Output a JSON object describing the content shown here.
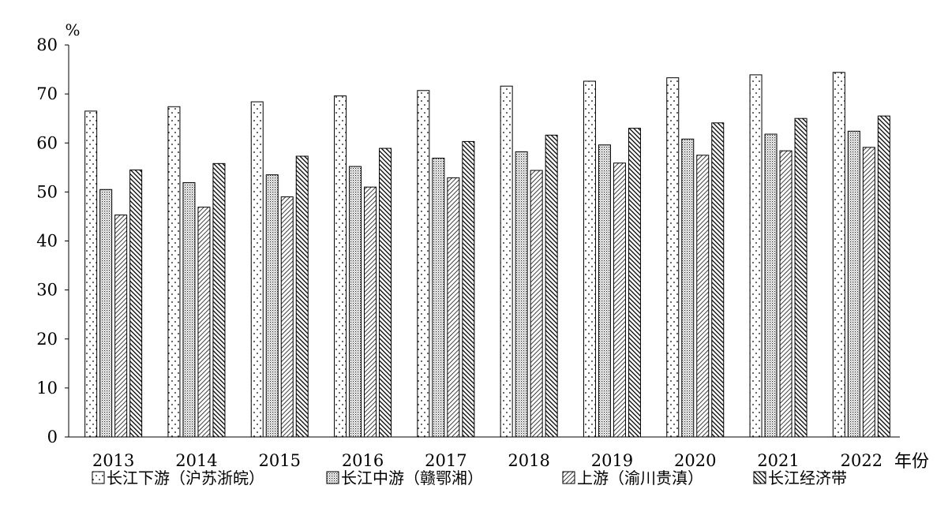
{
  "chart_data": {
    "type": "bar",
    "title": "",
    "ylabel": "%",
    "xlabel": "年份",
    "ylim": [
      0,
      80
    ],
    "yticks": [
      0,
      10,
      20,
      30,
      40,
      50,
      60,
      70,
      80
    ],
    "grid": false,
    "legend_position": "bottom",
    "categories": [
      "2013",
      "2014",
      "2015",
      "2016",
      "2017",
      "2018",
      "2019",
      "2020",
      "2021",
      "2022"
    ],
    "series": [
      {
        "name": "长江下游（沪苏浙皖）",
        "pattern": "sparse-dots",
        "values": [
          66.5,
          67.4,
          68.4,
          69.6,
          70.7,
          71.6,
          72.6,
          73.3,
          73.9,
          74.4
        ]
      },
      {
        "name": "长江中游（赣鄂湘）",
        "pattern": "dense-dots",
        "values": [
          50.5,
          51.9,
          53.5,
          55.2,
          56.9,
          58.2,
          59.6,
          60.8,
          61.8,
          62.4
        ]
      },
      {
        "name": "上游（渝川贵滇）",
        "pattern": "diagonal-lines",
        "values": [
          45.3,
          46.9,
          49.0,
          51.0,
          52.9,
          54.4,
          55.9,
          57.5,
          58.4,
          59.1
        ]
      },
      {
        "name": "长江经济带",
        "pattern": "dark-diagonal",
        "values": [
          54.5,
          55.8,
          57.3,
          58.9,
          60.3,
          61.6,
          63.0,
          64.1,
          65.0,
          65.5
        ]
      }
    ]
  }
}
